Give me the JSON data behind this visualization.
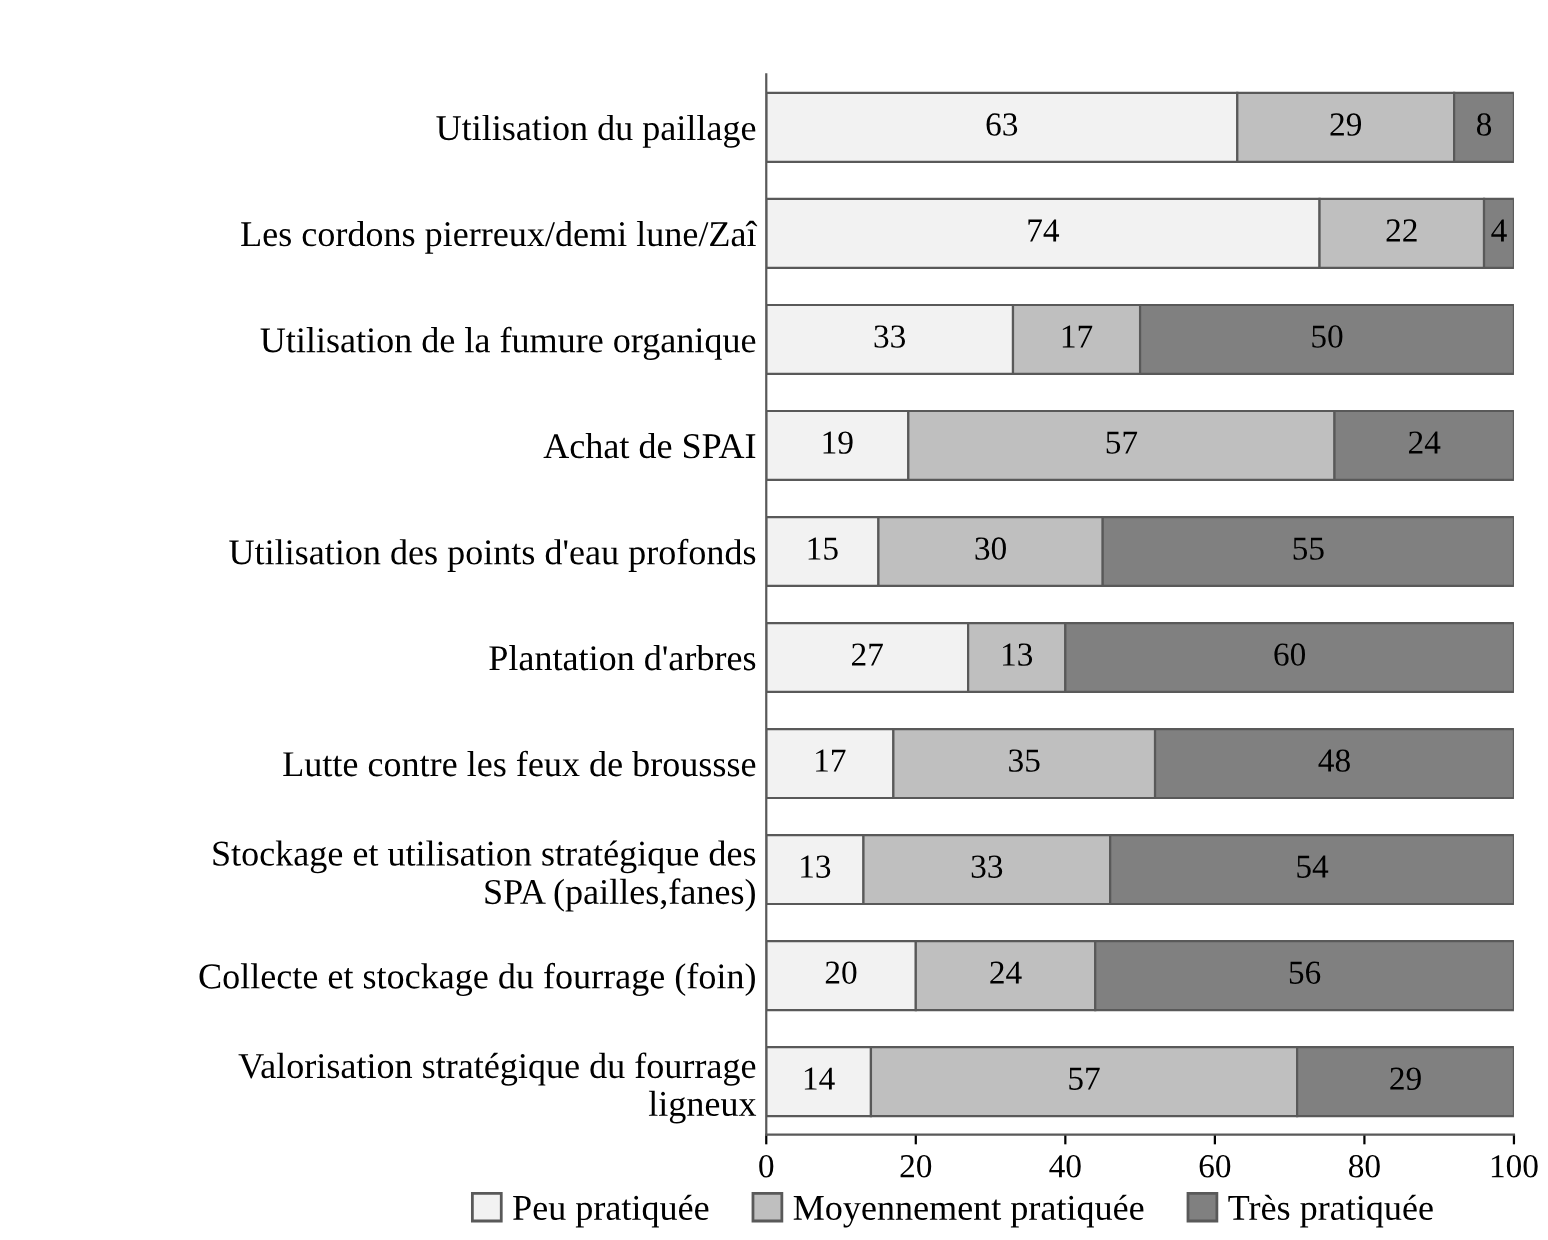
{
  "chart_data": {
    "type": "bar",
    "orientation": "horizontal",
    "stacked": true,
    "data_labels": true,
    "legend": "bottom",
    "grid": false,
    "categories": [
      "Utilisation du paillage",
      "Les cordons pierreux/demi lune/Zaî",
      "Utilisation de la fumure organique",
      "Achat de SPAI",
      "Utilisation des points d'eau profonds",
      "Plantation d'arbres",
      "Lutte contre les feux de broussse",
      "Stockage et utilisation stratégique des\nSPA (pailles,fanes)",
      "Collecte et stockage du fourrage (foin)",
      "Valorisation stratégique du fourrage\nligneux"
    ],
    "series": [
      {
        "name": "Peu pratiquée",
        "color": "#f2f2f2",
        "values": [
          63,
          74,
          33,
          19,
          15,
          27,
          17,
          13,
          20,
          14
        ]
      },
      {
        "name": "Moyennement pratiquée",
        "color": "#bfbfbf",
        "values": [
          29,
          22,
          17,
          57,
          30,
          13,
          35,
          33,
          24,
          57
        ]
      },
      {
        "name": "Très pratiquée",
        "color": "#808080",
        "values": [
          8,
          4,
          50,
          24,
          55,
          60,
          48,
          54,
          56,
          29
        ]
      }
    ],
    "xlim": [
      0,
      100
    ],
    "xticks": [
      0,
      20,
      40,
      60,
      80,
      100
    ]
  }
}
